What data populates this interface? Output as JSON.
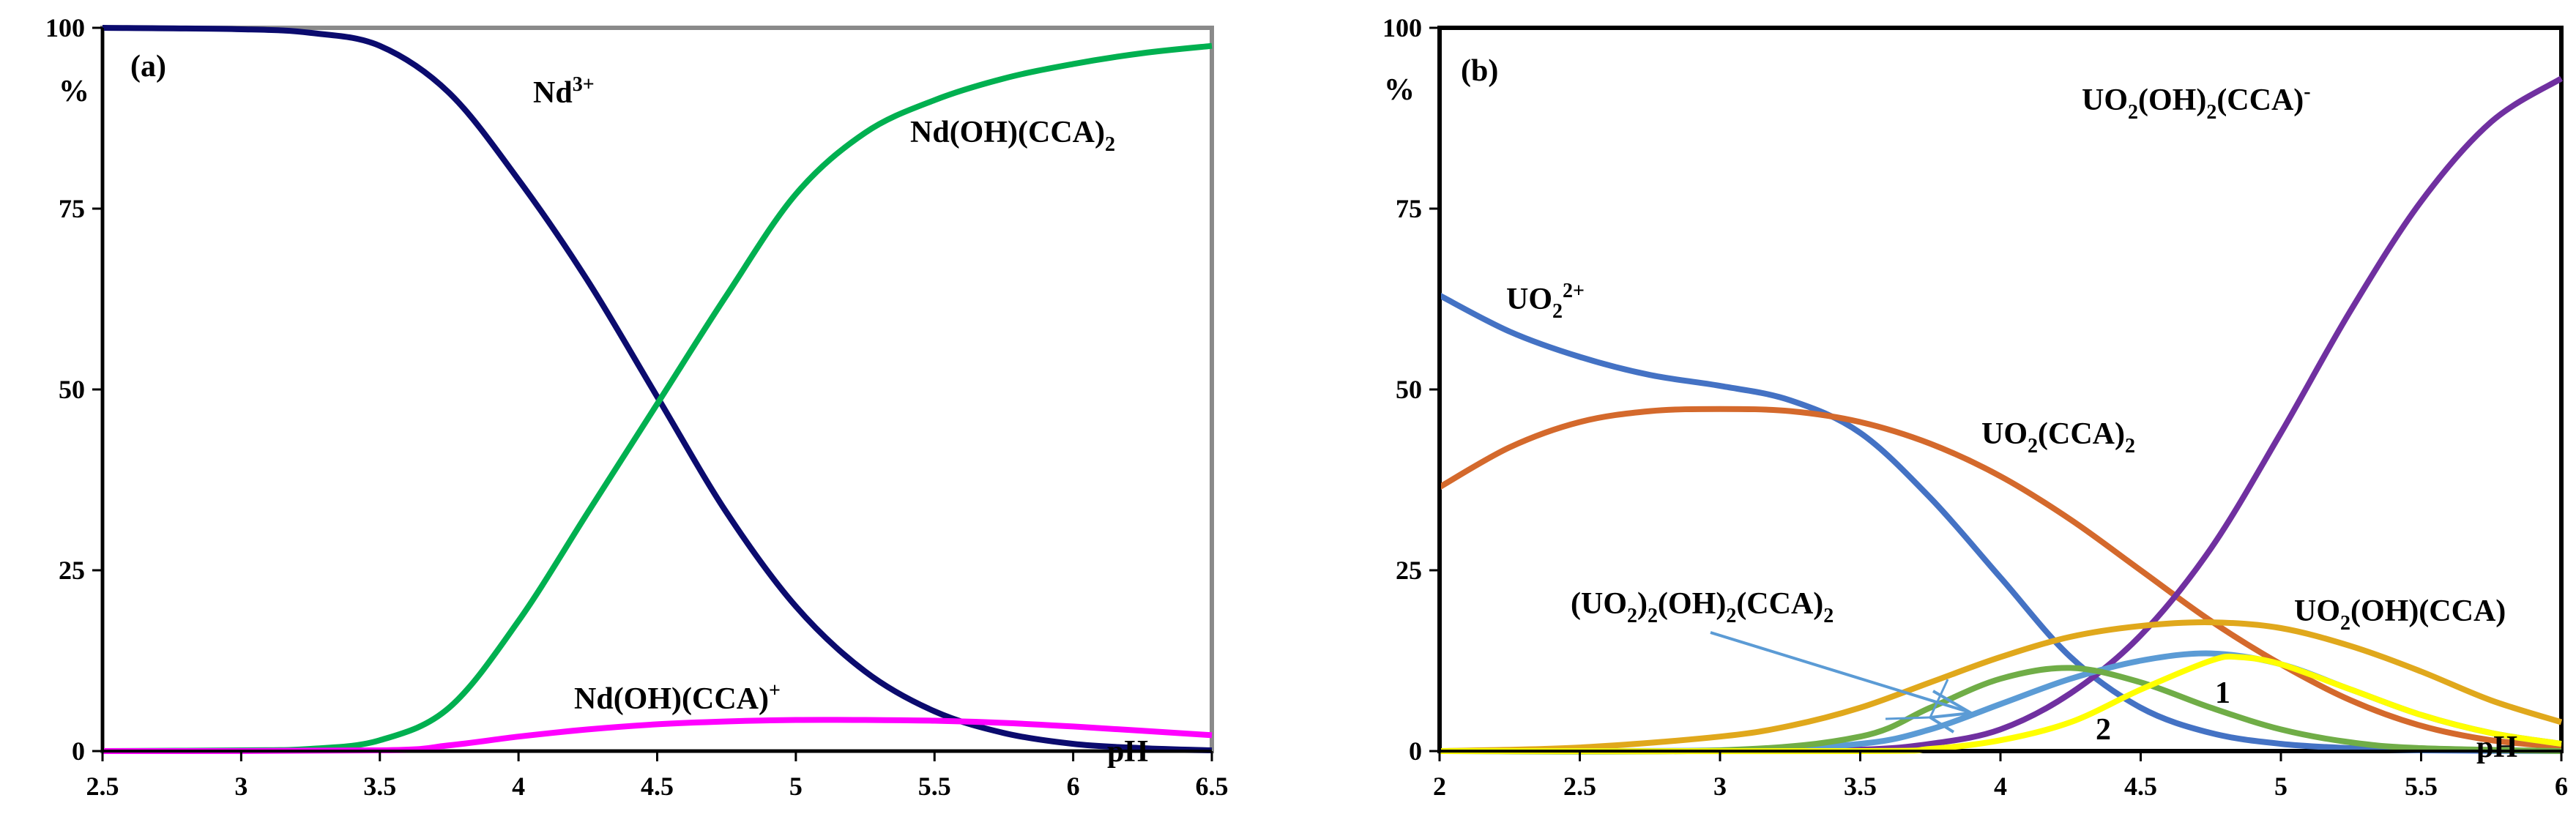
{
  "chart_data": [
    {
      "type": "line",
      "panel_label": "(a)",
      "xlabel": "pH",
      "ylabel": "%",
      "xlim": [
        2.5,
        6.5
      ],
      "ylim": [
        0,
        100
      ],
      "x_ticks": [
        "2.5",
        "3",
        "3.5",
        "4",
        "4.5",
        "5",
        "5.5",
        "6",
        "6.5"
      ],
      "y_ticks": [
        "0",
        "25",
        "50",
        "75",
        "100"
      ],
      "frame_color": "#8a8a8a",
      "series": [
        {
          "name": "Nd³⁺",
          "color": "#0b0b6e",
          "x": [
            2.5,
            3.0,
            3.25,
            3.5,
            3.75,
            4.0,
            4.25,
            4.5,
            4.75,
            5.0,
            5.25,
            5.5,
            5.75,
            6.0,
            6.25,
            6.5
          ],
          "y": [
            100,
            99.8,
            99.3,
            97.5,
            91,
            79,
            65,
            49,
            33,
            20,
            11,
            5.5,
            2.5,
            1.0,
            0.4,
            0.1
          ]
        },
        {
          "name": "Nd(OH)(CCA)₂",
          "color": "#00b050",
          "x": [
            2.5,
            3.0,
            3.25,
            3.5,
            3.75,
            4.0,
            4.25,
            4.5,
            4.75,
            5.0,
            5.25,
            5.5,
            5.75,
            6.0,
            6.25,
            6.5
          ],
          "y": [
            0,
            0.1,
            0.3,
            1.5,
            6,
            18,
            33,
            48,
            63,
            77,
            85.5,
            90,
            93,
            95,
            96.5,
            97.5
          ]
        },
        {
          "name": "Nd(OH)(CCA)⁺",
          "color": "#ff00ff",
          "x": [
            2.5,
            3.5,
            3.75,
            4.0,
            4.25,
            4.5,
            4.75,
            5.0,
            5.25,
            5.5,
            5.75,
            6.0,
            6.25,
            6.5
          ],
          "y": [
            0,
            0.1,
            0.8,
            2.0,
            3.0,
            3.7,
            4.1,
            4.3,
            4.3,
            4.2,
            3.9,
            3.4,
            2.8,
            2.2
          ]
        }
      ]
    },
    {
      "type": "line",
      "panel_label": "(b)",
      "xlabel": "pH",
      "ylabel": "%",
      "xlim": [
        2,
        6
      ],
      "ylim": [
        0,
        100
      ],
      "x_ticks": [
        "2",
        "2.5",
        "3",
        "3.5",
        "4",
        "4.5",
        "5",
        "5.5",
        "6"
      ],
      "y_ticks": [
        "0",
        "25",
        "50",
        "75",
        "100"
      ],
      "frame_color": "#000000",
      "series": [
        {
          "name": "UO₂²⁺",
          "color": "#4472c4",
          "x": [
            2.0,
            2.25,
            2.5,
            2.75,
            3.0,
            3.25,
            3.5,
            3.75,
            4.0,
            4.25,
            4.5,
            4.75,
            5.0,
            5.25,
            5.5,
            6.0
          ],
          "y": [
            63,
            58,
            54.5,
            52,
            50.5,
            48.5,
            44,
            35,
            24,
            13,
            6,
            2.5,
            1,
            0.4,
            0.1,
            0
          ]
        },
        {
          "name": "UO₂(CCA)₂",
          "color": "#d4692c",
          "x": [
            2.0,
            2.25,
            2.5,
            2.75,
            3.0,
            3.25,
            3.5,
            3.75,
            4.0,
            4.25,
            4.5,
            4.75,
            5.0,
            5.25,
            5.5,
            5.75,
            6.0
          ],
          "y": [
            36.5,
            42,
            45.5,
            47,
            47.3,
            47,
            45.5,
            42.5,
            38,
            32,
            25,
            18,
            12,
            7,
            3.5,
            1.5,
            0.6
          ]
        },
        {
          "name": "UO₂(OH)₂(CCA)⁻",
          "color": "#7030a0",
          "x": [
            2.0,
            3.0,
            3.5,
            3.75,
            4.0,
            4.25,
            4.5,
            4.75,
            5.0,
            5.25,
            5.5,
            5.75,
            6.0
          ],
          "y": [
            0,
            0,
            0.2,
            1,
            3,
            8,
            16,
            28,
            44,
            61,
            76,
            87,
            93
          ]
        },
        {
          "name": "UO₂(OH)(CCA)",
          "color": "#e0a81c",
          "x": [
            2.0,
            2.5,
            3.0,
            3.25,
            3.5,
            3.75,
            4.0,
            4.25,
            4.5,
            4.75,
            5.0,
            5.25,
            5.5,
            5.75,
            6.0
          ],
          "y": [
            0,
            0.5,
            2,
            3.5,
            6,
            9.5,
            13,
            15.8,
            17.3,
            17.8,
            17,
            14.5,
            11,
            7,
            4
          ]
        },
        {
          "name": "(UO₂)₂(OH)₂(CCA)₂",
          "color": "#5b9bd5",
          "x": [
            2.0,
            3.0,
            3.5,
            3.75,
            4.0,
            4.25,
            4.5,
            4.75,
            5.0,
            5.25,
            5.5,
            5.75,
            6.0
          ],
          "y": [
            0,
            0.1,
            1,
            3,
            6.5,
            10,
            12.5,
            13.5,
            12,
            8.5,
            5,
            2.5,
            1
          ]
        },
        {
          "name": "2",
          "color": "#70ad47",
          "x": [
            2.0,
            3.0,
            3.5,
            3.75,
            4.0,
            4.25,
            4.5,
            4.75,
            5.0,
            5.25,
            5.5,
            6.0
          ],
          "y": [
            0,
            0.1,
            2,
            6,
            10,
            11.5,
            9.5,
            6,
            3,
            1.2,
            0.4,
            0
          ]
        },
        {
          "name": "1",
          "color": "#ffff00",
          "x": [
            2.0,
            3.5,
            3.75,
            4.0,
            4.25,
            4.5,
            4.75,
            4.85,
            5.0,
            5.25,
            5.5,
            5.75,
            6.0
          ],
          "y": [
            0,
            0,
            0.3,
            1.5,
            4,
            8.5,
            12.5,
            13,
            12,
            8.5,
            5,
            2.5,
            1
          ]
        }
      ]
    }
  ]
}
